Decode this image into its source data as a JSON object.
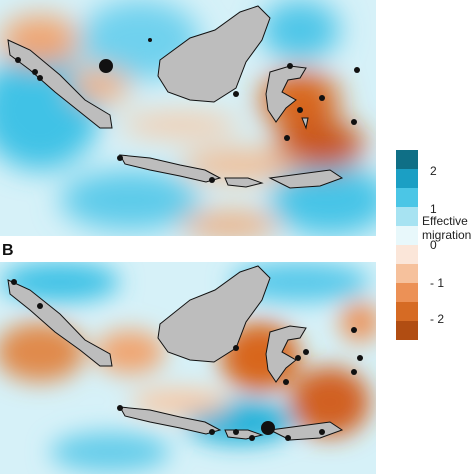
{
  "panels": [
    {
      "letter": ""
    },
    {
      "letter": "B"
    }
  ],
  "legend": {
    "title": "Effective\nmigration",
    "ticks": [
      "2",
      "1",
      "0",
      "- 1",
      "- 2"
    ],
    "colors": [
      "#0f6f86",
      "#1b9fc4",
      "#4bc6e6",
      "#a7e3f2",
      "#e8f8fb",
      "#fbe6d9",
      "#f6c19c",
      "#ec9156",
      "#d66b24",
      "#b14d12"
    ]
  },
  "map": {
    "land_color": "#bdbdbd",
    "positive_color": "#33bfe4",
    "negative_color": "#d8661f"
  }
}
